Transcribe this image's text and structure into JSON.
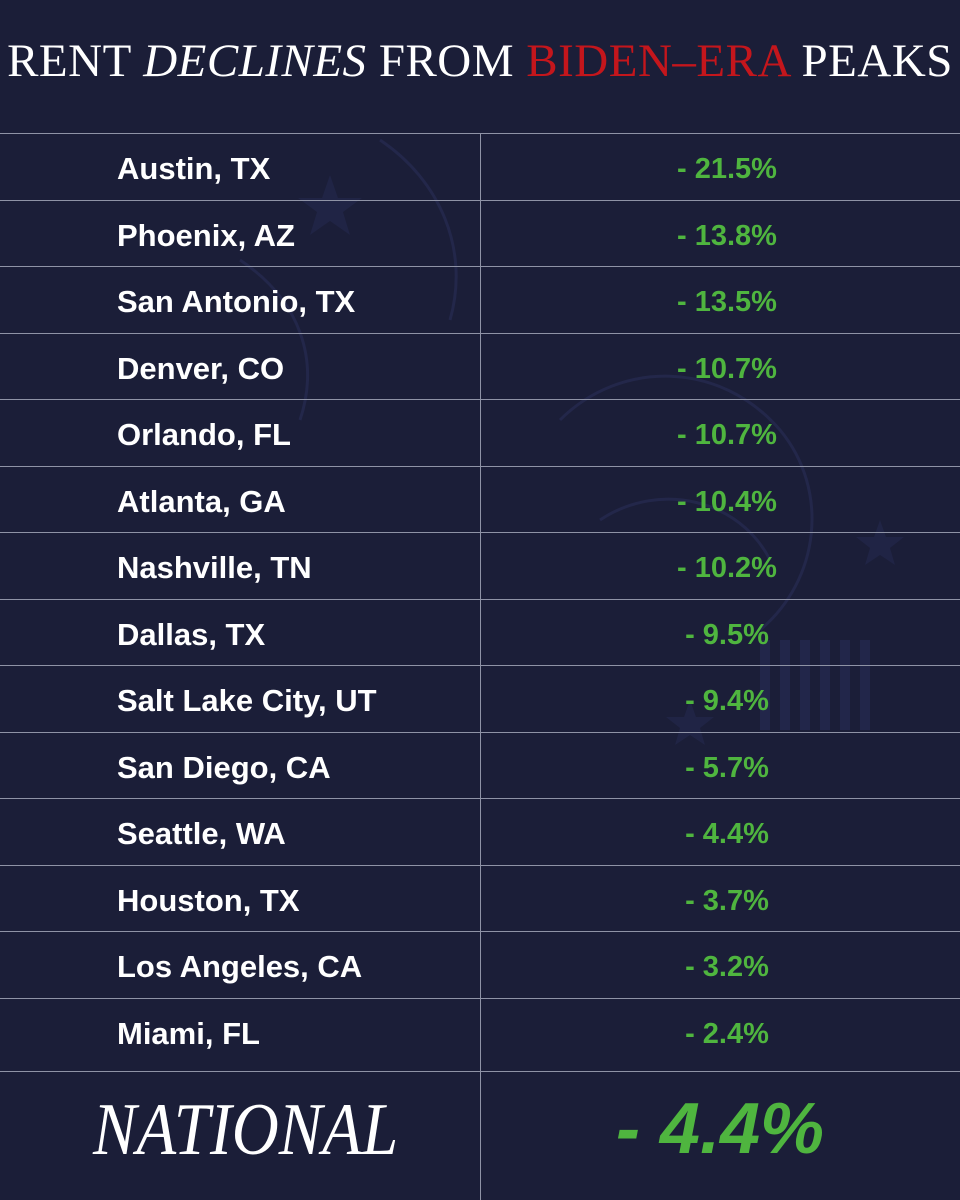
{
  "header": {
    "title_part1": "RENT ",
    "title_part2": "DECLINES",
    "title_part3": " FROM ",
    "title_part4": "BIDEN–ERA",
    "title_part5": " PEAKS",
    "accent_color": "#c4161c"
  },
  "colors": {
    "background": "#1b1e38",
    "value_green": "#4fb53f",
    "divider": "#8f93a6"
  },
  "chart_data": {
    "type": "table",
    "title": "RENT DECLINES FROM BIDEN–ERA PEAKS",
    "rows": [
      {
        "city": "Austin, TX",
        "value_label": "- 21.5%",
        "value": -21.5
      },
      {
        "city": "Phoenix, AZ",
        "value_label": "- 13.8%",
        "value": -13.8
      },
      {
        "city": "San Antonio, TX",
        "value_label": "- 13.5%",
        "value": -13.5
      },
      {
        "city": "Denver, CO",
        "value_label": "- 10.7%",
        "value": -10.7
      },
      {
        "city": "Orlando, FL",
        "value_label": "- 10.7%",
        "value": -10.7
      },
      {
        "city": "Atlanta, GA",
        "value_label": "- 10.4%",
        "value": -10.4
      },
      {
        "city": "Nashville, TN",
        "value_label": "- 10.2%",
        "value": -10.2
      },
      {
        "city": "Dallas, TX",
        "value_label": "- 9.5%",
        "value": -9.5
      },
      {
        "city": "Salt Lake City, UT",
        "value_label": "- 9.4%",
        "value": -9.4
      },
      {
        "city": "San Diego, CA",
        "value_label": "- 5.7%",
        "value": -5.7
      },
      {
        "city": "Seattle, WA",
        "value_label": "- 4.4%",
        "value": -4.4
      },
      {
        "city": "Houston, TX",
        "value_label": "- 3.7%",
        "value": -3.7
      },
      {
        "city": "Los Angeles, CA",
        "value_label": "- 3.2%",
        "value": -3.2
      },
      {
        "city": "Miami, FL",
        "value_label": "- 2.4%",
        "value": -2.4
      }
    ],
    "national": {
      "label": "NATIONAL",
      "value_label": "- 4.4%",
      "value": -4.4
    }
  }
}
